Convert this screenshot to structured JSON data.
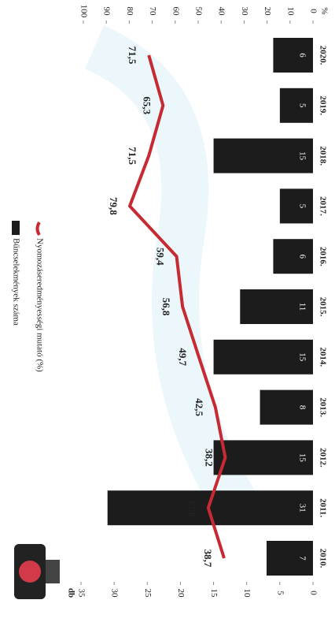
{
  "chart_data": {
    "type": "bar",
    "y_label": "db",
    "y2_label": "%",
    "categories": [
      "2010.",
      "2011.",
      "2012.",
      "2013.",
      "2014.",
      "2015.",
      "2016.",
      "2017.",
      "2018.",
      "2019.",
      "2020."
    ],
    "series": [
      {
        "name": "Bűncselekmények száma",
        "color": "#1c1c1c",
        "values": [
          7,
          31,
          15,
          8,
          15,
          11,
          6,
          5,
          15,
          5,
          6
        ]
      },
      {
        "name": "Nyomozáseredményességi mutató (%)",
        "type": "line",
        "axis": "y2",
        "color": "#c62a32",
        "values": [
          38.7,
          45.6,
          38.2,
          42.5,
          49.7,
          56.8,
          59.4,
          79.8,
          71.5,
          65.3,
          71.5
        ],
        "value_labels": [
          "38,7",
          "45,6",
          "38,2",
          "42,5",
          "49,7",
          "56,8",
          "59,4",
          "79,8",
          "71,5",
          "65,3",
          "71,5"
        ]
      }
    ],
    "ylim": [
      0,
      35
    ],
    "yticks": [
      0,
      5,
      10,
      15,
      20,
      25,
      30,
      35
    ],
    "y2lim": [
      0,
      100
    ],
    "y2ticks": [
      0,
      10,
      20,
      30,
      40,
      50,
      60,
      70,
      80,
      90,
      100
    ]
  }
}
